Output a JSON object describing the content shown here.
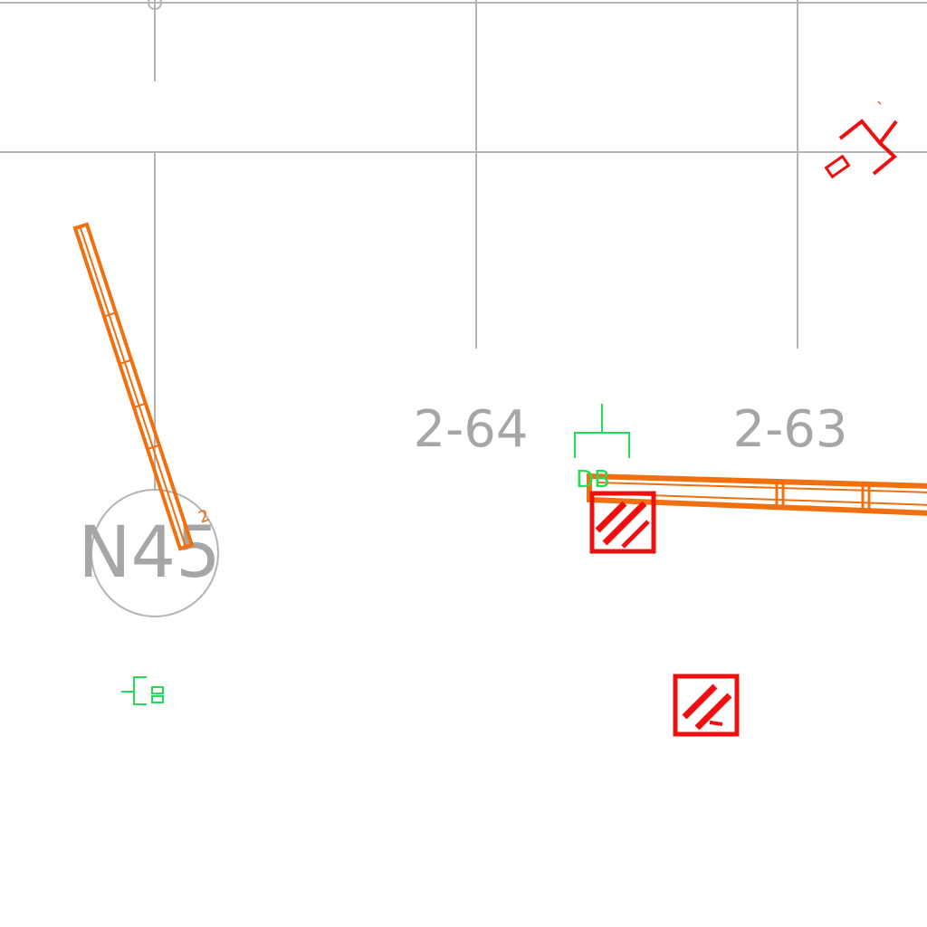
{
  "drawing": {
    "labels": {
      "grid_cell_left": "2-64",
      "grid_cell_right": "2-63",
      "node_tag": "N45",
      "beam_mark": "2",
      "green_mark": "DB"
    },
    "colors": {
      "grid": "#b4b4b4",
      "label": "#a6a6a6",
      "beam": "#f07010",
      "column": "#ee1010",
      "symbol": "#22dd55"
    },
    "icons": {
      "grid_bubble": "circle-icon",
      "column_marker": "hatched-square-icon",
      "green_symbol": "bracket-symbol-icon",
      "red_symbol": "zigzag-symbol-icon"
    }
  }
}
